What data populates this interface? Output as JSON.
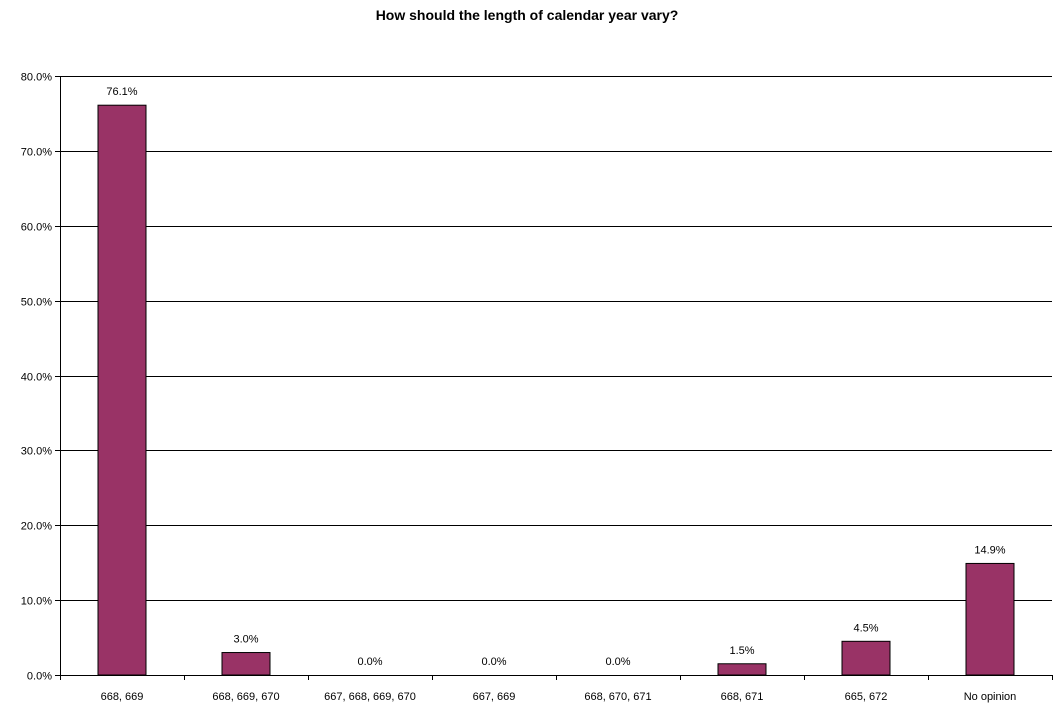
{
  "chart_data": {
    "type": "bar",
    "title": "How should the length of calendar year vary?",
    "xlabel": "",
    "ylabel": "",
    "categories": [
      "668, 669",
      "668, 669, 670",
      "667, 668, 669, 670",
      "667, 669",
      "668, 670, 671",
      "668, 671",
      "665, 672",
      "No opinion"
    ],
    "values": [
      76.1,
      3.0,
      0.0,
      0.0,
      0.0,
      1.5,
      4.5,
      14.9
    ],
    "data_labels": [
      "76.1%",
      "3.0%",
      "0.0%",
      "0.0%",
      "0.0%",
      "1.5%",
      "4.5%",
      "14.9%"
    ],
    "ylim": [
      0,
      80
    ],
    "yticks": [
      0,
      10,
      20,
      30,
      40,
      50,
      60,
      70,
      80
    ],
    "ytick_labels": [
      "0.0%",
      "10.0%",
      "20.0%",
      "30.0%",
      "40.0%",
      "50.0%",
      "60.0%",
      "70.0%",
      "80.0%"
    ],
    "grid": true,
    "legend": "none",
    "bar_color": "#993366"
  }
}
